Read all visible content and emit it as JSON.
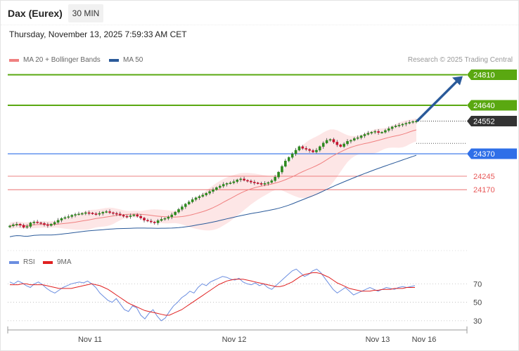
{
  "header": {
    "instrument": "Dax (Eurex)",
    "interval": "30 MIN",
    "datetime": "Thursday, November 13, 2025 7:59:33 AM CET",
    "credit": "Research © 2025 Trading Central"
  },
  "legend": {
    "ma20": "MA 20 + Bollinger Bands",
    "ma50": "MA 50",
    "rsi": "RSI",
    "rsi_ma": "9MA"
  },
  "colors": {
    "ma20": "#f08080",
    "ma50": "#2a5a9a",
    "bollinger_fill": "#fde2e2",
    "resistance": "#5aa811",
    "current": "#333333",
    "pivot": "#2f6fe8",
    "support": "#e85a5a",
    "arrow": "#2a5a9a",
    "rsi": "#6b8ee0",
    "rsi_ma": "#e02020",
    "candle_up": "#2d8a1e",
    "candle_down": "#c8102e"
  },
  "chart_data": [
    {
      "type": "line",
      "title": "",
      "x_ticks": [
        "Nov 11",
        "Nov 12",
        "Nov 13",
        "Nov 16"
      ],
      "ylim": [
        23840,
        24900
      ],
      "close_series": [
        23968,
        23975,
        23978,
        23972,
        23960,
        23965,
        23985,
        23990,
        23986,
        23982,
        23975,
        23970,
        23978,
        23988,
        24000,
        24010,
        24015,
        24020,
        24028,
        24032,
        24035,
        24038,
        24042,
        24040,
        24036,
        24033,
        24038,
        24045,
        24048,
        24042,
        24038,
        24035,
        24028,
        24022,
        24020,
        24025,
        24030,
        24022,
        24012,
        24000,
        23995,
        23990,
        23985,
        23998,
        24005,
        24010,
        24018,
        24030,
        24045,
        24060,
        24075,
        24090,
        24102,
        24115,
        24125,
        24132,
        24140,
        24150,
        24160,
        24170,
        24182,
        24190,
        24200,
        24205,
        24208,
        24215,
        24225,
        24230,
        24222,
        24218,
        24212,
        24208,
        24205,
        24200,
        24205,
        24210,
        24220,
        24240,
        24268,
        24300,
        24330,
        24350,
        24370,
        24390,
        24410,
        24400,
        24395,
        24388,
        24380,
        24390,
        24410,
        24430,
        24445,
        24450,
        24435,
        24420,
        24410,
        24425,
        24440,
        24445,
        24455,
        24460,
        24470,
        24478,
        24485,
        24490,
        24495,
        24488,
        24490,
        24500,
        24510,
        24520,
        24525,
        24530,
        24535,
        24540,
        24545,
        24550,
        24552
      ],
      "levels": [
        {
          "value": 24810,
          "label": "24810",
          "kind": "resistance"
        },
        {
          "value": 24640,
          "label": "24640",
          "kind": "resistance"
        },
        {
          "value": 24552,
          "label": "24552",
          "kind": "current"
        },
        {
          "value": 24370,
          "label": "24370",
          "kind": "pivot"
        },
        {
          "value": 24245,
          "label": "24245",
          "kind": "support"
        },
        {
          "value": 24170,
          "label": "24170",
          "kind": "support"
        }
      ],
      "target_arrow": {
        "from": 24552,
        "to": 24810
      },
      "series": [
        {
          "name": "MA 20 + Bollinger Bands"
        },
        {
          "name": "MA 50"
        }
      ]
    },
    {
      "type": "line",
      "title": "",
      "ylim": [
        20,
        90
      ],
      "y_ticks": [
        70,
        50,
        30
      ],
      "series": [
        {
          "name": "RSI",
          "values": [
            72,
            70,
            73,
            71,
            68,
            66,
            70,
            72,
            69,
            65,
            62,
            60,
            63,
            66,
            68,
            70,
            71,
            72,
            71,
            73,
            70,
            66,
            60,
            56,
            52,
            50,
            54,
            48,
            42,
            40,
            46,
            44,
            36,
            32,
            38,
            42,
            35,
            30,
            33,
            40,
            46,
            50,
            55,
            58,
            62,
            60,
            66,
            70,
            68,
            72,
            74,
            76,
            78,
            77,
            75,
            74,
            76,
            72,
            70,
            69,
            71,
            68,
            70,
            66,
            64,
            68,
            72,
            76,
            80,
            84,
            86,
            82,
            78,
            80,
            84,
            86,
            82,
            76,
            70,
            64,
            60,
            63,
            66,
            62,
            58,
            60,
            62,
            64,
            66,
            64,
            62,
            64,
            66,
            65,
            64,
            66,
            67,
            66,
            67,
            68
          ]
        },
        {
          "name": "9MA",
          "values": [
            69,
            69,
            69,
            70,
            70,
            69,
            69,
            69,
            69,
            68,
            67,
            66,
            65,
            65,
            65,
            65,
            66,
            67,
            68,
            69,
            70,
            69,
            68,
            66,
            64,
            61,
            58,
            55,
            52,
            49,
            47,
            45,
            43,
            41,
            40,
            39,
            38,
            37,
            36,
            36,
            38,
            40,
            42,
            45,
            48,
            51,
            54,
            57,
            60,
            63,
            66,
            69,
            71,
            73,
            74,
            75,
            75,
            75,
            74,
            73,
            72,
            71,
            70,
            69,
            68,
            67,
            67,
            68,
            70,
            72,
            75,
            78,
            80,
            81,
            82,
            82,
            81,
            79,
            77,
            74,
            71,
            69,
            67,
            65,
            64,
            63,
            62,
            62,
            62,
            63,
            63,
            64,
            64,
            64,
            65,
            65,
            65,
            66,
            66,
            66
          ]
        }
      ]
    }
  ]
}
